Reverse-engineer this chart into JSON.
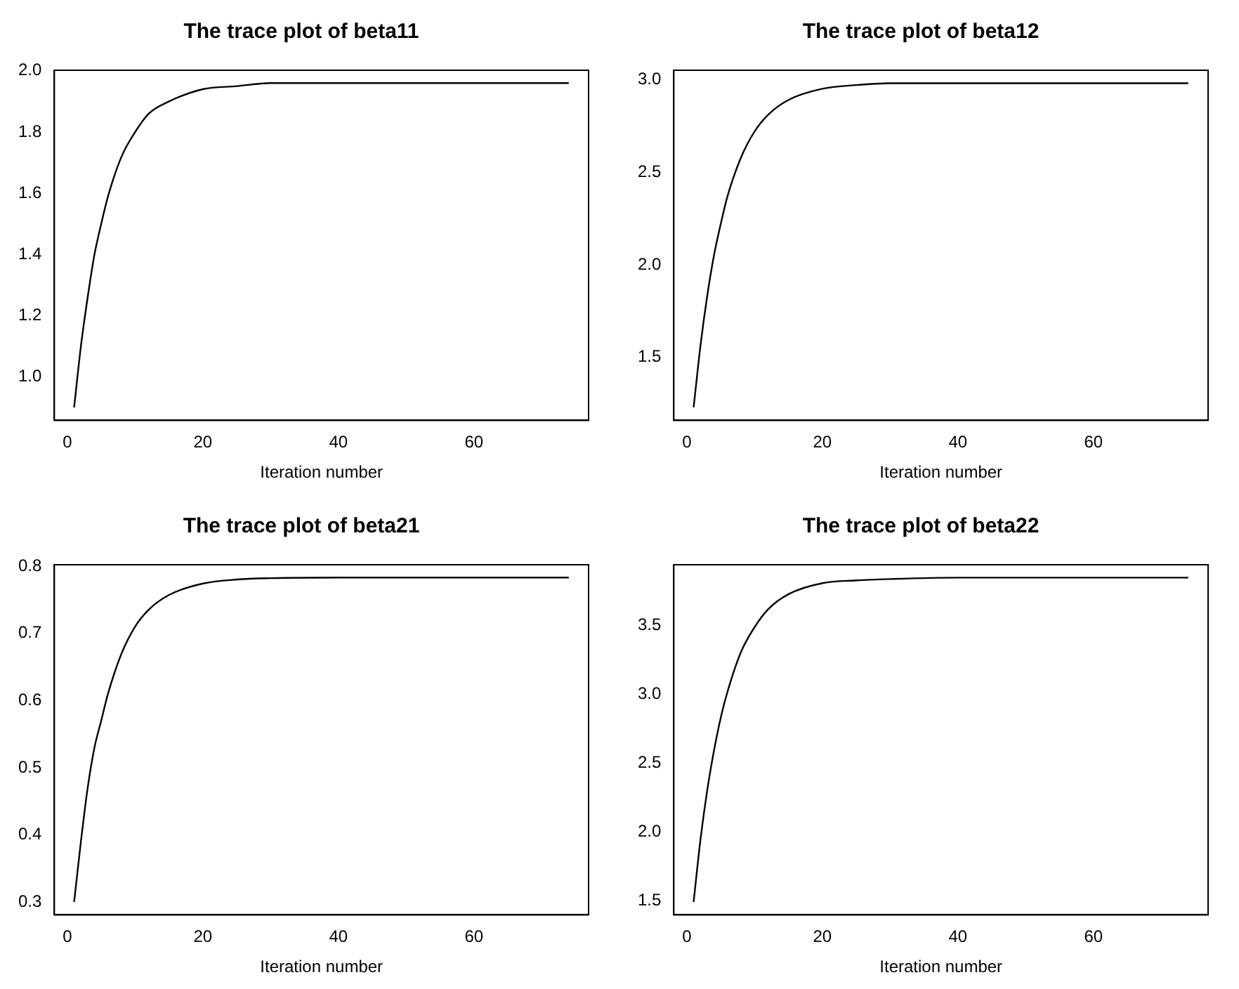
{
  "chart_data": [
    {
      "type": "line",
      "title": "The trace plot of beta11",
      "xlabel": "Iteration number",
      "color": "#000000",
      "x": [
        1,
        2,
        3,
        4,
        5,
        6,
        8,
        10,
        12,
        15,
        20,
        25,
        30,
        40,
        50,
        60,
        74
      ],
      "values": [
        0.9,
        1.1,
        1.26,
        1.4,
        1.5,
        1.59,
        1.72,
        1.8,
        1.86,
        1.9,
        1.94,
        1.95,
        1.96,
        1.96,
        1.96,
        1.96,
        1.96
      ],
      "xlim": [
        -1.92,
        76.92
      ],
      "xticks": [
        0,
        20,
        40,
        60
      ],
      "ylim": [
        0.858,
        2.002
      ],
      "yticks": [
        {
          "value": 1.0,
          "label": "1.0"
        },
        1.2,
        1.4,
        1.6,
        1.8,
        {
          "value": 2.0,
          "label": "2.0"
        }
      ]
    },
    {
      "type": "line",
      "title": "The trace plot of beta12",
      "xlabel": "Iteration number",
      "color": "#000000",
      "x": [
        1,
        2,
        3,
        4,
        5,
        6,
        8,
        10,
        12,
        15,
        20,
        25,
        30,
        40,
        50,
        60,
        74
      ],
      "values": [
        1.23,
        1.56,
        1.83,
        2.05,
        2.22,
        2.37,
        2.58,
        2.72,
        2.81,
        2.89,
        2.95,
        2.97,
        2.98,
        2.98,
        2.98,
        2.98,
        2.98
      ],
      "xlim": [
        -1.92,
        76.92
      ],
      "xticks": [
        0,
        20,
        40,
        60
      ],
      "ylim": [
        1.16,
        3.05
      ],
      "yticks": [
        1.5,
        {
          "value": 2.0,
          "label": "2.0"
        },
        2.5,
        {
          "value": 3.0,
          "label": "3.0"
        }
      ]
    },
    {
      "type": "line",
      "title": "The trace plot of beta21",
      "xlabel": "Iteration number",
      "color": "#000000",
      "x": [
        1,
        2,
        3,
        4,
        5,
        6,
        8,
        10,
        12,
        15,
        20,
        25,
        30,
        40,
        50,
        60,
        74
      ],
      "values": [
        0.3,
        0.39,
        0.47,
        0.53,
        0.57,
        0.61,
        0.67,
        0.71,
        0.735,
        0.757,
        0.774,
        0.78,
        0.782,
        0.783,
        0.783,
        0.783,
        0.783
      ],
      "xlim": [
        -1.92,
        76.92
      ],
      "xticks": [
        0,
        20,
        40,
        60
      ],
      "ylim": [
        0.281,
        0.802
      ],
      "yticks": [
        0.3,
        0.4,
        0.5,
        0.6,
        0.7,
        0.8
      ]
    },
    {
      "type": "line",
      "title": "The trace plot of beta22",
      "xlabel": "Iteration number",
      "color": "#000000",
      "x": [
        1,
        2,
        3,
        4,
        5,
        6,
        8,
        10,
        12,
        15,
        20,
        25,
        30,
        40,
        50,
        60,
        74
      ],
      "values": [
        1.49,
        1.94,
        2.3,
        2.59,
        2.83,
        3.02,
        3.31,
        3.49,
        3.62,
        3.73,
        3.81,
        3.83,
        3.84,
        3.85,
        3.85,
        3.85,
        3.85
      ],
      "xlim": [
        -1.92,
        76.92
      ],
      "xticks": [
        0,
        20,
        40,
        60
      ],
      "ylim": [
        1.396,
        3.944
      ],
      "yticks": [
        1.5,
        {
          "value": 2.0,
          "label": "2.0"
        },
        2.5,
        {
          "value": 3.0,
          "label": "3.0"
        },
        3.5
      ]
    }
  ]
}
